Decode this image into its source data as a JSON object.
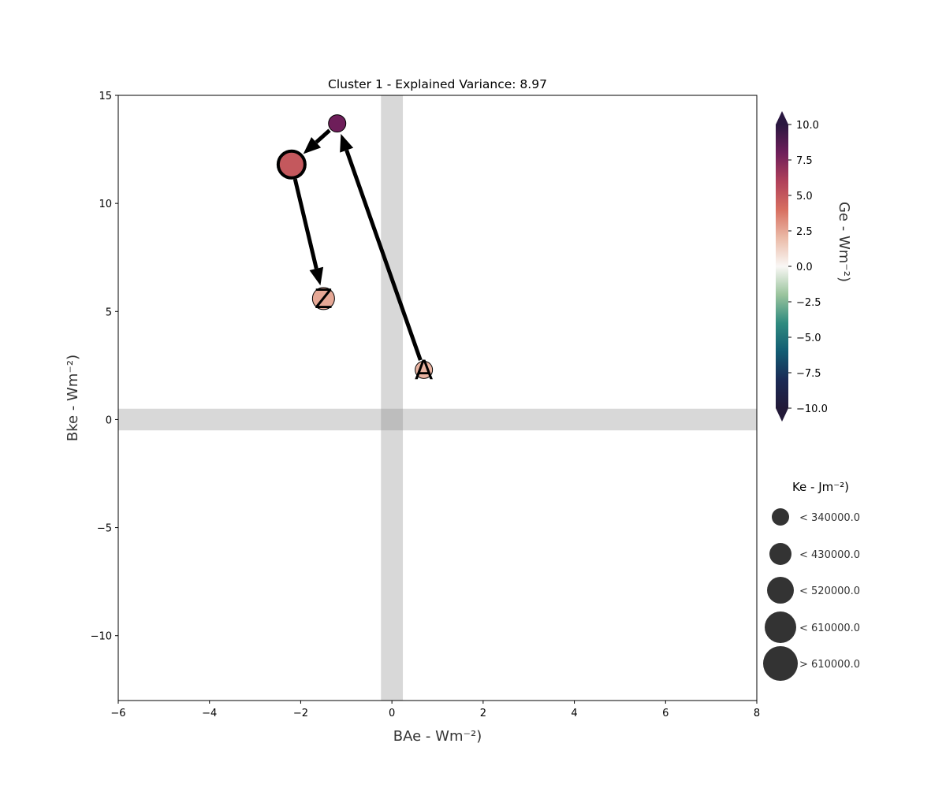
{
  "chart_data": {
    "type": "scatter",
    "title": "Cluster 1 - Explained Variance: 8.97",
    "xlabel": "BAe - Wm⁻²)",
    "ylabel": "Bke - Wm⁻²)",
    "xlim": [
      -6,
      8
    ],
    "ylim": [
      -13,
      15
    ],
    "xticks": [
      "−6",
      "−4",
      "−2",
      "0",
      "2",
      "4",
      "6",
      "8"
    ],
    "xtick_values": [
      -6,
      -4,
      -2,
      0,
      2,
      4,
      6,
      8
    ],
    "yticks": [
      "−10",
      "−5",
      "0",
      "5",
      "10",
      "15"
    ],
    "ytick_values": [
      -10,
      -5,
      0,
      5,
      10,
      15
    ],
    "grid": false,
    "zero_bands": true,
    "points": [
      {
        "x": 0.7,
        "y": 2.3,
        "color_value": 2.2,
        "size_class": 0,
        "label": "A",
        "highlight": false
      },
      {
        "x": -1.2,
        "y": 13.7,
        "color_value": 8.0,
        "size_class": 0,
        "label": "",
        "highlight": false
      },
      {
        "x": -2.2,
        "y": 11.8,
        "color_value": 5.0,
        "size_class": 2,
        "label": "",
        "highlight": true
      },
      {
        "x": -1.5,
        "y": 5.6,
        "color_value": 2.5,
        "size_class": 1,
        "label": "Z",
        "highlight": false
      }
    ],
    "colorbar": {
      "label": "Ge - Wm⁻²)",
      "min": -10.0,
      "max": 10.0,
      "ticks": [
        "10.0",
        "7.5",
        "5.0",
        "2.5",
        "0.0",
        "−2.5",
        "−5.0",
        "−7.5",
        "−10.0"
      ],
      "tick_values": [
        10.0,
        7.5,
        5.0,
        2.5,
        0.0,
        -2.5,
        -5.0,
        -7.5,
        -10.0
      ],
      "colors": [
        "#2a1740",
        "#6e1e5a",
        "#b0405a",
        "#d76f60",
        "#ebbba8",
        "#f9f7f5",
        "#9ac49d",
        "#2f8b7f",
        "#125c73",
        "#1a2a55",
        "#231a38"
      ]
    },
    "size_legend": {
      "title": "Ke - Jm⁻²)",
      "entries": [
        "< 340000.0",
        "< 430000.0",
        "< 520000.0",
        "< 610000.0",
        "> 610000.0"
      ]
    }
  }
}
